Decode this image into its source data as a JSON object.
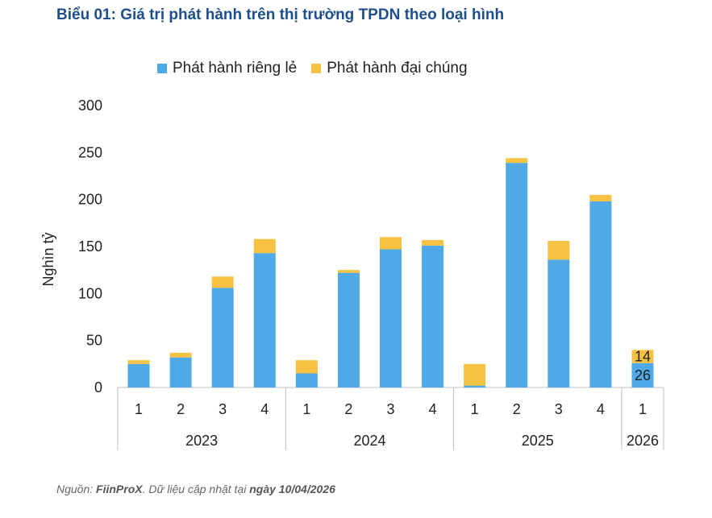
{
  "title": "Biểu 01: Giá trị phát hành trên thị trường TPDN theo loại hình",
  "source": {
    "prefix": "Nguồn: ",
    "provider": "FiinProX",
    "middle": ". Dữ liệu cập nhật tại ",
    "date": "ngày 10/04/2026"
  },
  "chart_data": {
    "type": "bar",
    "stacked": true,
    "ylabel": "Nghìn tỷ",
    "xlabel": "",
    "ylim": [
      0,
      300
    ],
    "yticks": [
      0,
      50,
      100,
      150,
      200,
      250,
      300
    ],
    "grid": false,
    "legend_position": "top",
    "categories": [
      "1",
      "2",
      "3",
      "4",
      "1",
      "2",
      "3",
      "4",
      "1",
      "2",
      "3",
      "4",
      "1"
    ],
    "year_groups": [
      {
        "label": "2023",
        "count": 4
      },
      {
        "label": "2024",
        "count": 4
      },
      {
        "label": "2025",
        "count": 4
      },
      {
        "label": "2026",
        "count": 1
      }
    ],
    "series": [
      {
        "name": "Phát hành riêng lẻ",
        "color": "#4ea9e6",
        "values": [
          25,
          32,
          106,
          143,
          15,
          122,
          147,
          151,
          2,
          239,
          136,
          198,
          26
        ]
      },
      {
        "name": "Phát hành đại chúng",
        "color": "#f5c242",
        "values": [
          4,
          5,
          12,
          15,
          14,
          3,
          13,
          6,
          23,
          5,
          20,
          7,
          14
        ]
      }
    ],
    "data_labels": [
      {
        "category_index": 12,
        "series": 1,
        "text": "14"
      },
      {
        "category_index": 12,
        "series": 0,
        "text": "26"
      }
    ]
  }
}
